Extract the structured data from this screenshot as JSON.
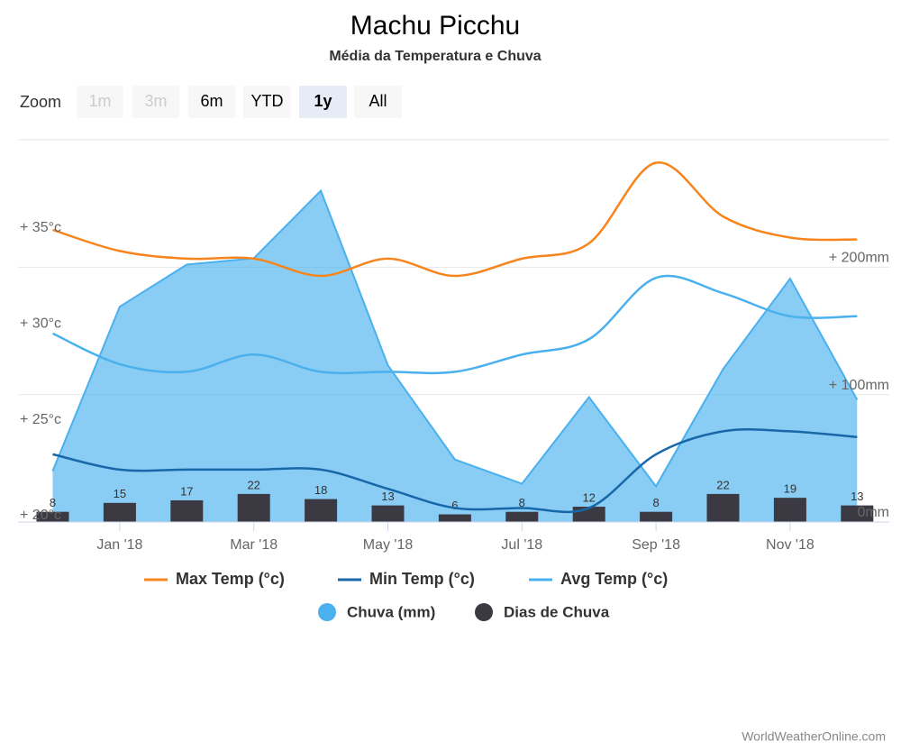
{
  "range_selector": {
    "label": "Zoom",
    "buttons": [
      {
        "text": "1m",
        "enabled": false,
        "selected": false
      },
      {
        "text": "3m",
        "enabled": false,
        "selected": false
      },
      {
        "text": "6m",
        "enabled": true,
        "selected": false
      },
      {
        "text": "YTD",
        "enabled": true,
        "selected": false
      },
      {
        "text": "1y",
        "enabled": true,
        "selected": true
      },
      {
        "text": "All",
        "enabled": true,
        "selected": false
      }
    ]
  },
  "chart_data": {
    "type": "combo",
    "title": "Machu Picchu",
    "subtitle": "Média da Temperatura e Chuva",
    "categories": [
      null,
      "Jan '18",
      null,
      "Mar '18",
      null,
      "May '18",
      null,
      "Jul '18",
      null,
      "Sep '18",
      null,
      "Nov '18",
      null
    ],
    "ylim": [
      19.67,
      39.6
    ],
    "yticks": [
      {
        "value": 20,
        "label": "+ 20°c"
      },
      {
        "value": 25,
        "label": "+ 25°c"
      },
      {
        "value": 30,
        "label": "+ 30°c"
      },
      {
        "value": 35,
        "label": "+ 35°c"
      }
    ],
    "y2lim": [
      0,
      300
    ],
    "y2ticks": [
      {
        "value": 0,
        "label": "0mm"
      },
      {
        "value": 100,
        "label": "+ 100mm"
      },
      {
        "value": 200,
        "label": "+ 200mm"
      }
    ],
    "grid": true,
    "series": [
      {
        "name": "Max Temp (°c)",
        "type": "line",
        "color": "#f7851e",
        "values": [
          34.9,
          33.8,
          33.4,
          33.4,
          32.5,
          33.4,
          32.5,
          33.4,
          34.2,
          38.4,
          35.6,
          34.5,
          34.4
        ]
      },
      {
        "name": "Min Temp (°c)",
        "type": "line",
        "color": "#1767a9",
        "values": [
          23.2,
          22.4,
          22.4,
          22.4,
          22.4,
          21.4,
          20.4,
          20.4,
          20.4,
          23.2,
          24.4,
          24.4,
          24.1
        ]
      },
      {
        "name": "Avg Temp (°c)",
        "type": "line",
        "color": "#4ab0ee",
        "values": [
          29.5,
          27.9,
          27.5,
          28.4,
          27.5,
          27.5,
          27.5,
          28.4,
          29.2,
          32.4,
          31.6,
          30.4,
          30.4
        ]
      },
      {
        "name": "Chuva (mm)",
        "type": "area",
        "axis": "y2",
        "color": "#4ab0ee",
        "values": [
          40,
          169,
          202,
          207,
          260,
          123,
          49,
          30,
          98,
          28,
          120,
          191,
          96
        ]
      },
      {
        "name": "Dias de Chuva",
        "type": "column",
        "axis": "y2",
        "color": "#3b3a42",
        "values": [
          8,
          15,
          17,
          22,
          18,
          13,
          6,
          8,
          12,
          8,
          22,
          19,
          13
        ]
      }
    ],
    "credits": "WorldWeatherOnline.com"
  }
}
